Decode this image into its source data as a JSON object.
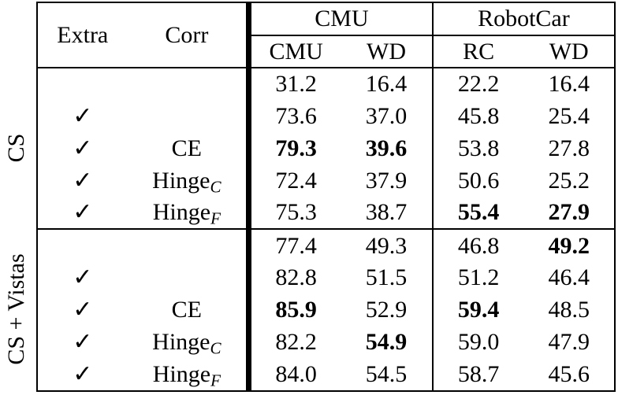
{
  "table": {
    "checkmark_glyph": "✓",
    "header": {
      "extra": "Extra",
      "corr": "Corr",
      "group_cmu": "CMU",
      "group_robotcar": "RobotCar",
      "sub": [
        "CMU",
        "WD",
        "RC",
        "WD"
      ]
    },
    "groups": [
      {
        "label": "CS",
        "rows": [
          {
            "extra": false,
            "corr": null,
            "values": [
              "31.2",
              "16.4",
              "22.2",
              "16.4"
            ],
            "bold": [
              false,
              false,
              false,
              false
            ]
          },
          {
            "extra": true,
            "corr": null,
            "values": [
              "73.6",
              "37.0",
              "45.8",
              "25.4"
            ],
            "bold": [
              false,
              false,
              false,
              false
            ]
          },
          {
            "extra": true,
            "corr": {
              "text": "CE",
              "sub": ""
            },
            "values": [
              "79.3",
              "39.6",
              "53.8",
              "27.8"
            ],
            "bold": [
              true,
              true,
              false,
              false
            ]
          },
          {
            "extra": true,
            "corr": {
              "text": "Hinge",
              "sub": "C"
            },
            "values": [
              "72.4",
              "37.9",
              "50.6",
              "25.2"
            ],
            "bold": [
              false,
              false,
              false,
              false
            ]
          },
          {
            "extra": true,
            "corr": {
              "text": "Hinge",
              "sub": "F"
            },
            "values": [
              "75.3",
              "38.7",
              "55.4",
              "27.9"
            ],
            "bold": [
              false,
              false,
              true,
              true
            ]
          }
        ]
      },
      {
        "label": "CS + Vistas",
        "rows": [
          {
            "extra": false,
            "corr": null,
            "values": [
              "77.4",
              "49.3",
              "46.8",
              "49.2"
            ],
            "bold": [
              false,
              false,
              false,
              true
            ]
          },
          {
            "extra": true,
            "corr": null,
            "values": [
              "82.8",
              "51.5",
              "51.2",
              "46.4"
            ],
            "bold": [
              false,
              false,
              false,
              false
            ]
          },
          {
            "extra": true,
            "corr": {
              "text": "CE",
              "sub": ""
            },
            "values": [
              "85.9",
              "52.9",
              "59.4",
              "48.5"
            ],
            "bold": [
              true,
              false,
              true,
              false
            ]
          },
          {
            "extra": true,
            "corr": {
              "text": "Hinge",
              "sub": "C"
            },
            "values": [
              "82.2",
              "54.9",
              "59.0",
              "47.9"
            ],
            "bold": [
              false,
              true,
              false,
              false
            ]
          },
          {
            "extra": true,
            "corr": {
              "text": "Hinge",
              "sub": "F"
            },
            "values": [
              "84.0",
              "54.5",
              "58.7",
              "45.6"
            ],
            "bold": [
              false,
              false,
              false,
              false
            ]
          }
        ]
      }
    ]
  }
}
